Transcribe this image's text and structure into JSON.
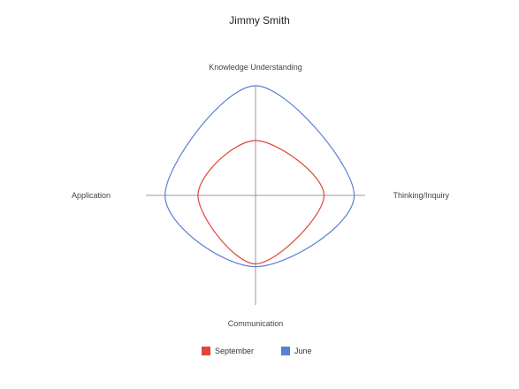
{
  "chart_data": {
    "type": "radar",
    "title": "Jimmy Smith",
    "axes": [
      "Knowledge Understanding",
      "Thinking/Inquiry",
      "Communication",
      "Application"
    ],
    "range": [
      0,
      4
    ],
    "series": [
      {
        "name": "September",
        "values": [
          2,
          2.5,
          2.5,
          2.1
        ],
        "color": "#e0463a"
      },
      {
        "name": "June",
        "values": [
          4,
          3.6,
          2.6,
          3.3
        ],
        "color": "#5b7fd6"
      }
    ],
    "axis_color": "#9a9a9a",
    "legend_position": "bottom",
    "grid": false
  }
}
